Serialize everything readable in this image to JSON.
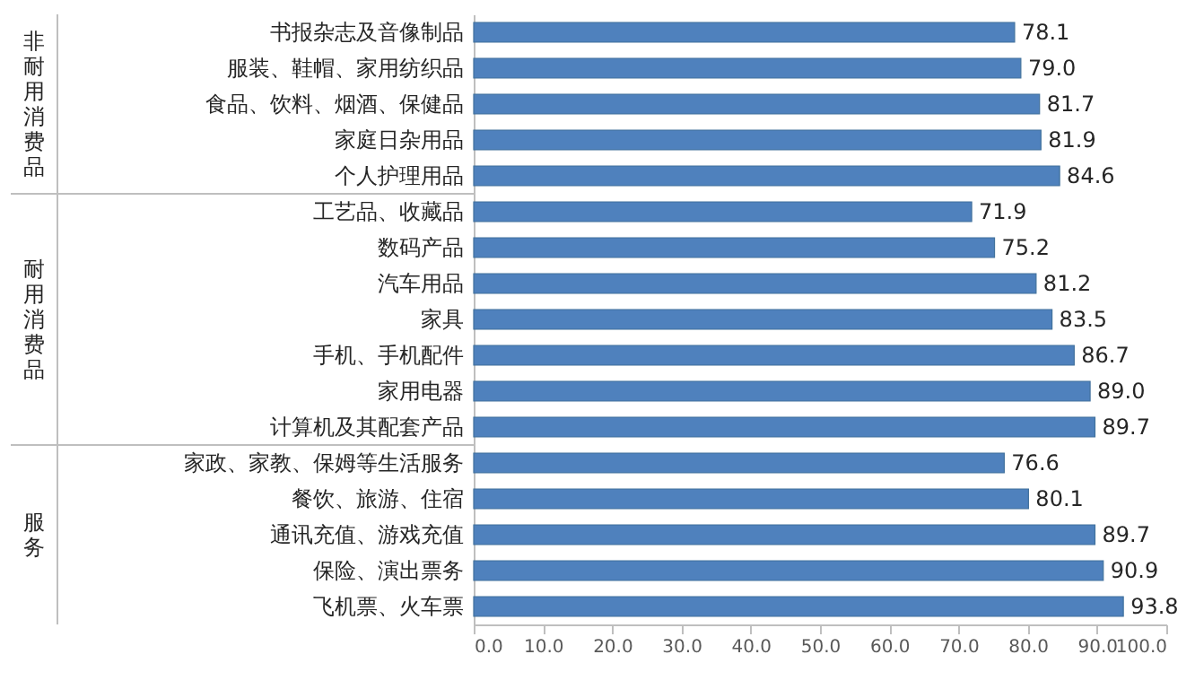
{
  "chart_data": {
    "type": "bar",
    "orientation": "horizontal",
    "categories": [
      "书报杂志及音像制品",
      "服装、鞋帽、家用纺织品",
      "食品、饮料、烟酒、保健品",
      "家庭日杂用品",
      "个人护理用品",
      "工艺品、收藏品",
      "数码产品",
      "汽车用品",
      "家具",
      "手机、手机配件",
      "家用电器",
      "计算机及其配套产品",
      "家政、家教、保姆等生活服务",
      "餐饮、旅游、住宿",
      "通讯充值、游戏充值",
      "保险、演出票务",
      "飞机票、火车票"
    ],
    "values": [
      78.1,
      79.0,
      81.7,
      81.9,
      84.6,
      71.9,
      75.2,
      81.2,
      83.5,
      86.7,
      89.0,
      89.7,
      76.6,
      80.1,
      89.7,
      90.9,
      93.8
    ],
    "color": "#4f81bd",
    "xlim": [
      0,
      100
    ],
    "xticks": [
      {
        "value": 0,
        "label": "0.0"
      },
      {
        "value": 10,
        "label": "10.0"
      },
      {
        "value": 20,
        "label": "20.0"
      },
      {
        "value": 30,
        "label": "30.0"
      },
      {
        "value": 40,
        "label": "40.0"
      },
      {
        "value": 50,
        "label": "50.0"
      },
      {
        "value": 60,
        "label": "60.0"
      },
      {
        "value": 70,
        "label": "70.0"
      },
      {
        "value": 80,
        "label": "80.0"
      },
      {
        "value": 90,
        "label": "90.0"
      },
      {
        "value": 100,
        "label": "100.0"
      }
    ],
    "data_labels": true,
    "value_labels": [
      "78.1",
      "79.0",
      "81.7",
      "81.9",
      "84.6",
      "71.9",
      "75.2",
      "81.2",
      "83.5",
      "86.7",
      "89.0",
      "89.7",
      "76.6",
      "80.1",
      "89.7",
      "90.9",
      "93.8"
    ],
    "grid": false,
    "annotations": [
      "非耐用消费品",
      "耐用消费品",
      "服务"
    ]
  }
}
